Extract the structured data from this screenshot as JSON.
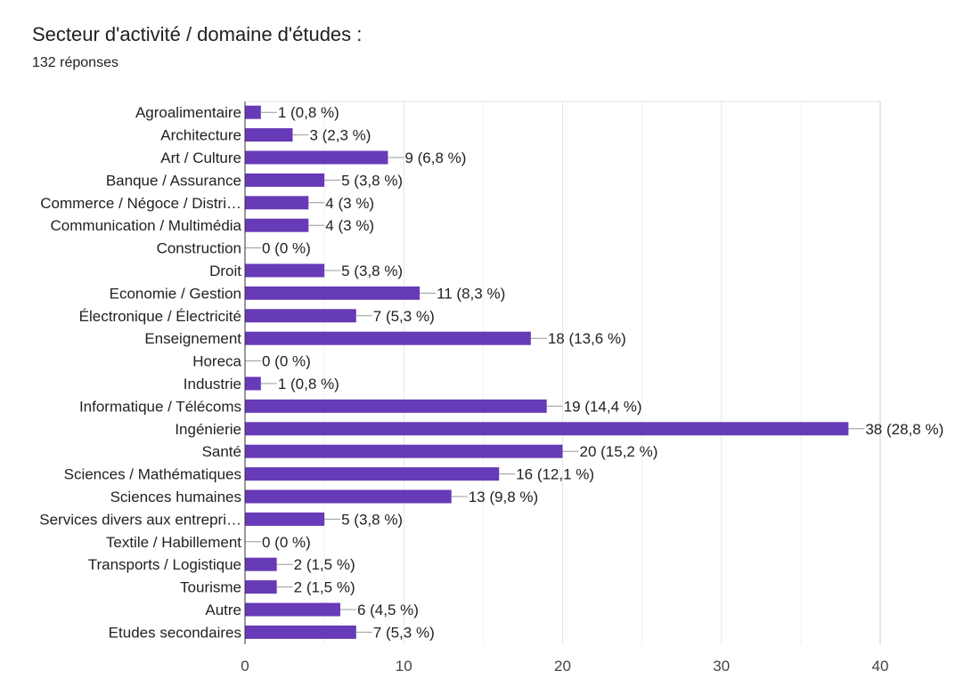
{
  "header": {
    "title": "Secteur d'activité / domaine d'études :",
    "response_count": "132 réponses"
  },
  "chart_data": {
    "type": "bar",
    "orientation": "horizontal",
    "bar_color": "#673ab7",
    "xlim": [
      0,
      40
    ],
    "x_ticks": [
      0,
      10,
      20,
      30,
      40
    ],
    "x_minor_gridlines": [
      5,
      15,
      25,
      35
    ],
    "grid": true,
    "categories": [
      "Agroalimentaire",
      "Architecture",
      "Art / Culture",
      "Banque / Assurance",
      "Commerce / Négoce / Distri…",
      "Communication / Multimédia",
      "Construction",
      "Droit",
      "Economie / Gestion",
      "Électronique / Électricité",
      "Enseignement",
      "Horeca",
      "Industrie",
      "Informatique / Télécoms",
      "Ingénierie",
      "Santé",
      "Sciences / Mathématiques",
      "Sciences humaines",
      "Services divers aux entrepri…",
      "Textile / Habillement",
      "Transports / Logistique",
      "Tourisme",
      "Autre",
      "Etudes secondaires"
    ],
    "values": [
      1,
      3,
      9,
      5,
      4,
      4,
      0,
      5,
      11,
      7,
      18,
      0,
      1,
      19,
      38,
      20,
      16,
      13,
      5,
      0,
      2,
      2,
      6,
      7
    ],
    "data_labels": [
      "1 (0,8 %)",
      "3 (2,3 %)",
      "9 (6,8 %)",
      "5 (3,8 %)",
      "4 (3 %)",
      "4 (3 %)",
      "0 (0 %)",
      "5 (3,8 %)",
      "11 (8,3 %)",
      "7 (5,3 %)",
      "18 (13,6 %)",
      "0 (0 %)",
      "1 (0,8 %)",
      "19 (14,4 %)",
      "38 (28,8 %)",
      "20 (15,2 %)",
      "16 (12,1 %)",
      "13 (9,8 %)",
      "5 (3,8 %)",
      "0 (0 %)",
      "2 (1,5 %)",
      "2 (1,5 %)",
      "6 (4,5 %)",
      "7 (5,3 %)"
    ]
  }
}
